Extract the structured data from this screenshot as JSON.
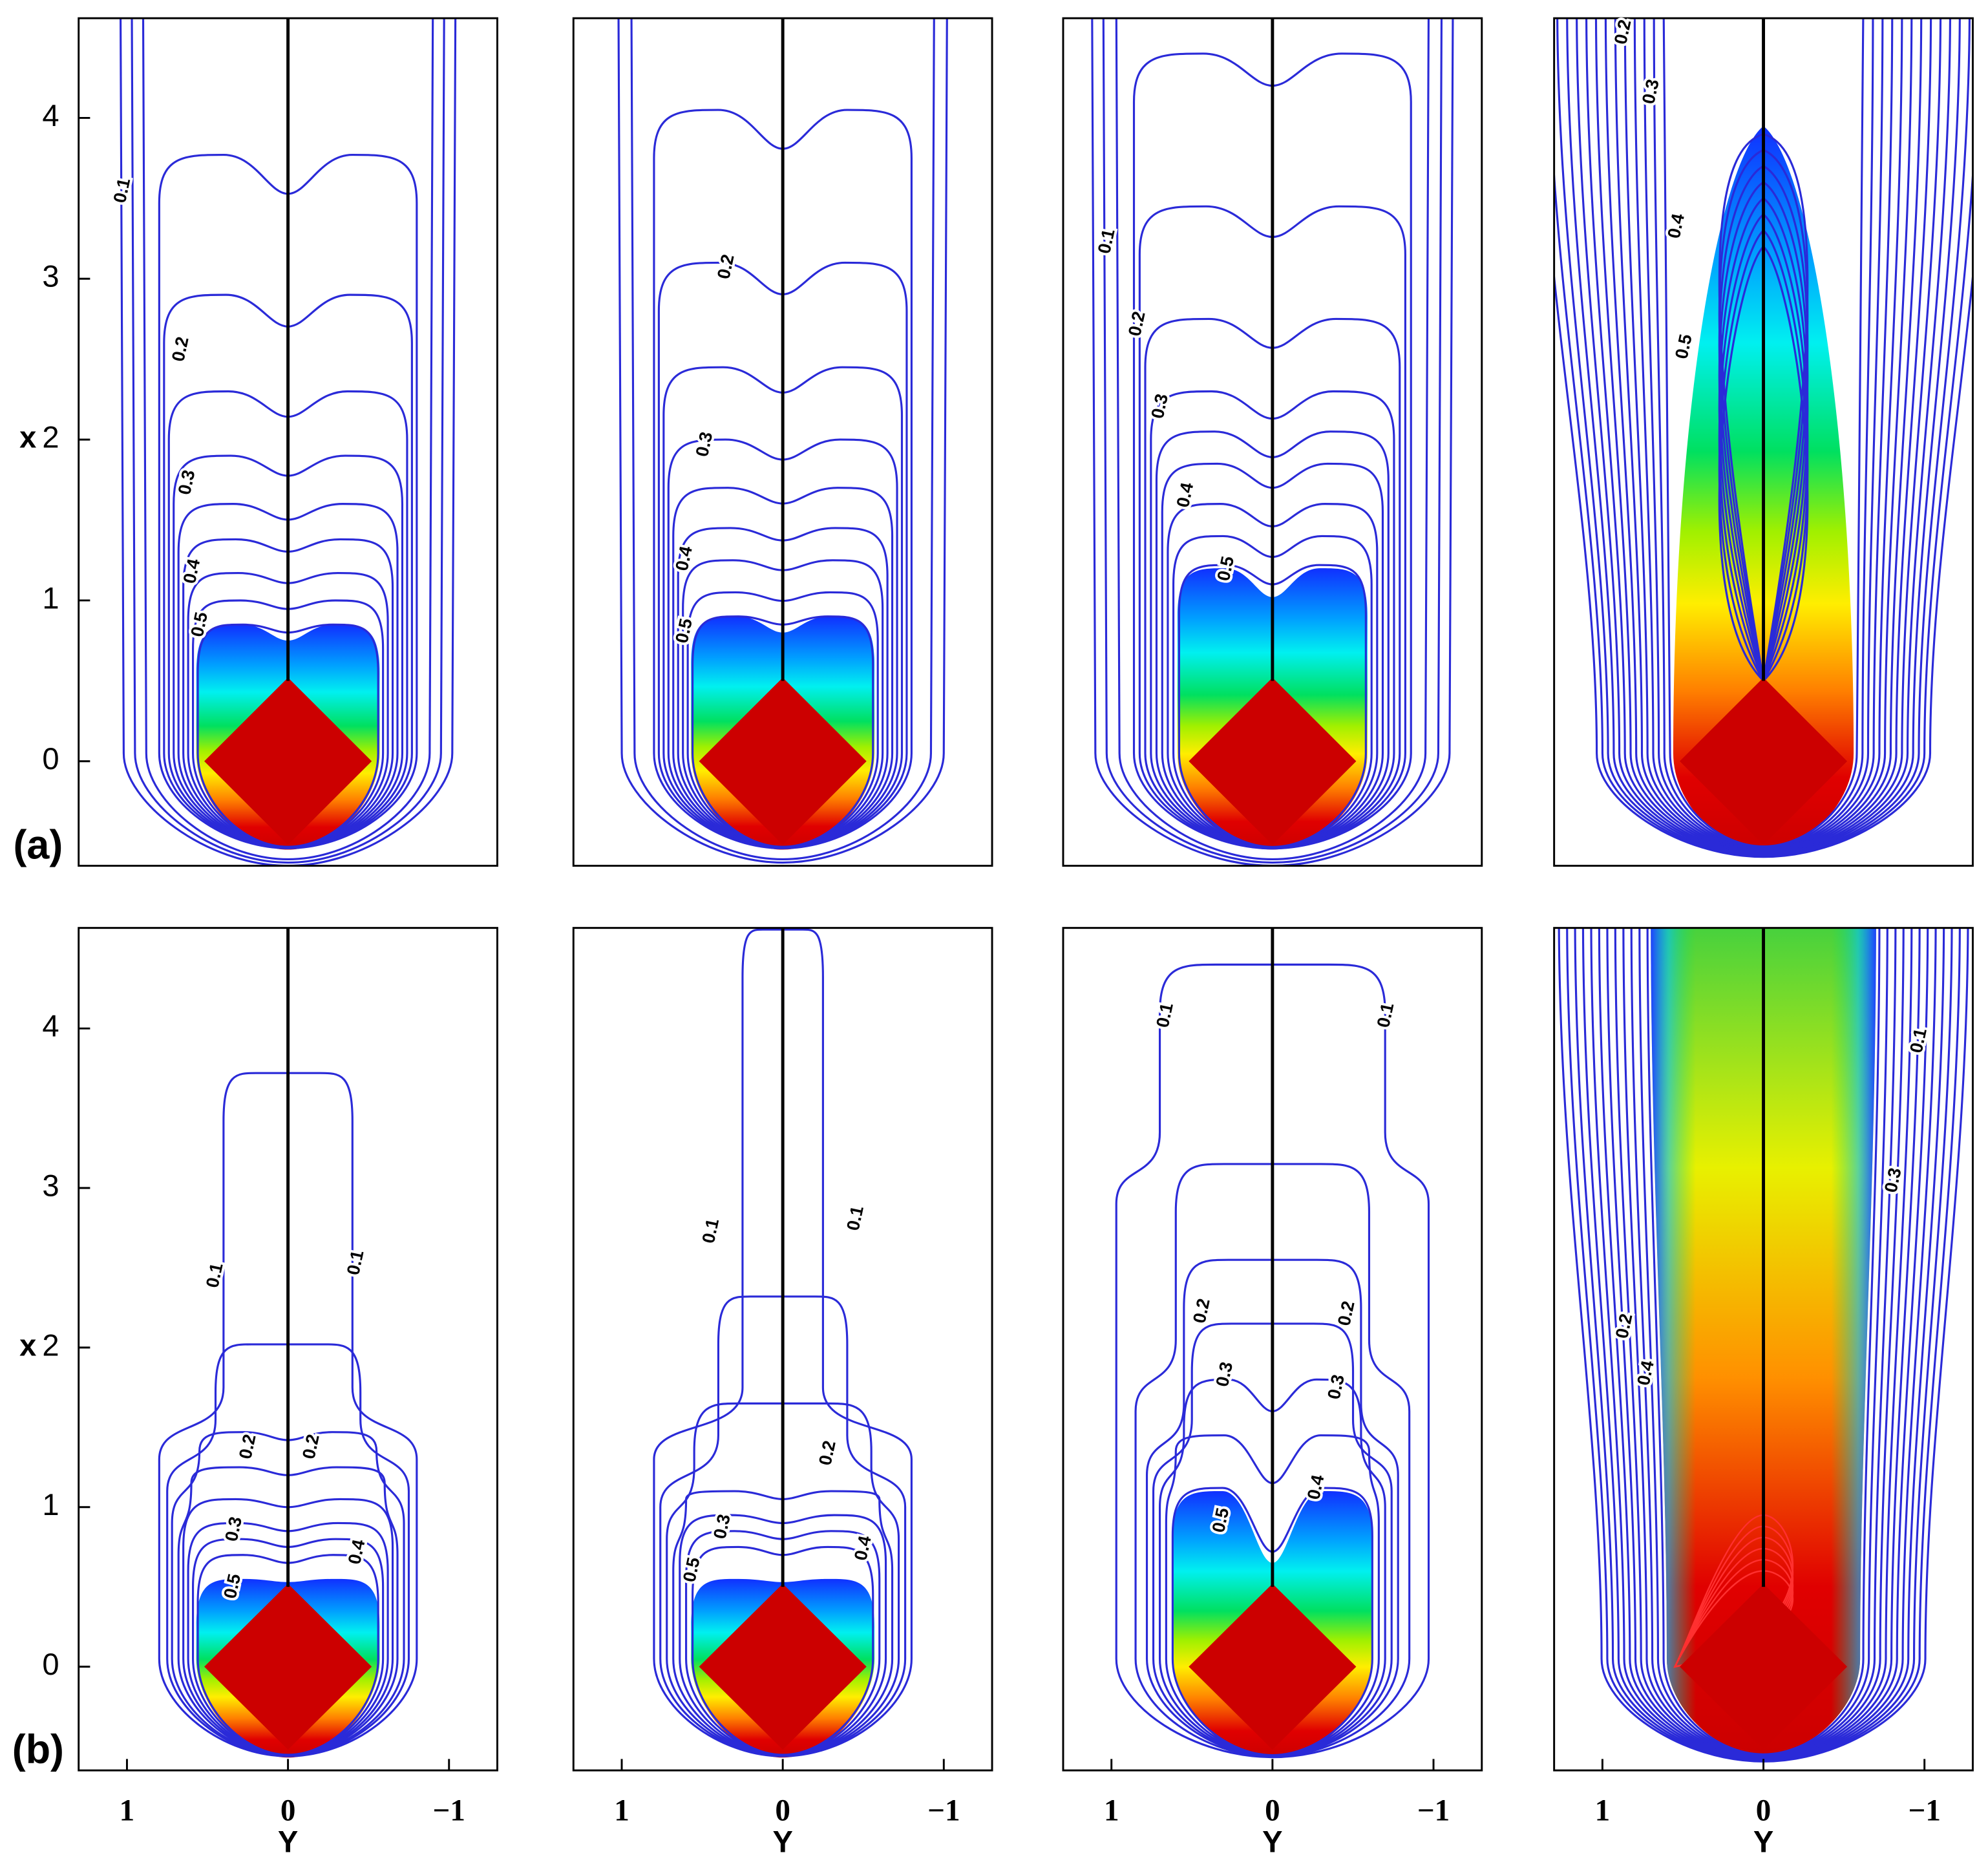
{
  "chart_data": [
    {
      "type": "contour",
      "annotation": "(a)",
      "ylabel": "x",
      "xlim": [
        1.3,
        -1.3
      ],
      "ylim": [
        -0.65,
        4.62
      ],
      "yticks": [
        0,
        1,
        2,
        3,
        4
      ],
      "contour_labels": [
        0.1,
        0.2,
        0.3,
        0.4,
        0.5
      ]
    },
    {
      "type": "contour",
      "xlim": [
        1.3,
        -1.3
      ],
      "ylim": [
        -0.65,
        4.62
      ],
      "contour_labels": [
        0.2,
        0.3,
        0.4,
        0.5
      ]
    },
    {
      "type": "contour",
      "xlim": [
        1.3,
        -1.3
      ],
      "ylim": [
        -0.65,
        4.62
      ],
      "contour_labels": [
        0.1,
        0.2,
        0.3,
        0.4,
        0.5
      ]
    },
    {
      "type": "contour",
      "xlim": [
        1.3,
        -1.3
      ],
      "ylim": [
        -0.65,
        4.62
      ],
      "contour_labels": [
        0.2,
        0.3,
        0.4,
        0.5
      ]
    },
    {
      "type": "contour",
      "annotation": "(b)",
      "ylabel": "x",
      "xlabel": "Y",
      "xlim": [
        1.3,
        -1.3
      ],
      "ylim": [
        -0.65,
        4.63
      ],
      "yticks": [
        0,
        1,
        2,
        3,
        4
      ],
      "xticks": [
        1,
        0,
        {
          "value": -1,
          "label": "−1"
        }
      ],
      "contour_labels": [
        0.1,
        0.1,
        0.2,
        0.2,
        0.3,
        0.4,
        0.5
      ]
    },
    {
      "type": "contour",
      "xlabel": "Y",
      "xlim": [
        1.3,
        -1.3
      ],
      "ylim": [
        -0.65,
        4.63
      ],
      "xticks": [
        1,
        0,
        {
          "value": -1,
          "label": "−1"
        }
      ],
      "contour_labels": [
        0.1,
        0.1,
        0.2,
        0.3,
        0.4,
        0.5
      ]
    },
    {
      "type": "contour",
      "xlabel": "Y",
      "xlim": [
        1.3,
        -1.3
      ],
      "ylim": [
        -0.65,
        4.63
      ],
      "xticks": [
        1,
        0,
        {
          "value": -1,
          "label": "−1"
        }
      ],
      "contour_labels": [
        0.1,
        0.1,
        0.2,
        0.2,
        0.3,
        0.3,
        0.4,
        0.5
      ]
    },
    {
      "type": "contour",
      "xlabel": "Y",
      "xlim": [
        1.3,
        -1.3
      ],
      "ylim": [
        -0.65,
        4.63
      ],
      "xticks": [
        1,
        0,
        {
          "value": -1,
          "label": "−1"
        }
      ],
      "contour_labels": [
        0.1,
        0.2,
        0.3,
        0.4
      ]
    }
  ]
}
